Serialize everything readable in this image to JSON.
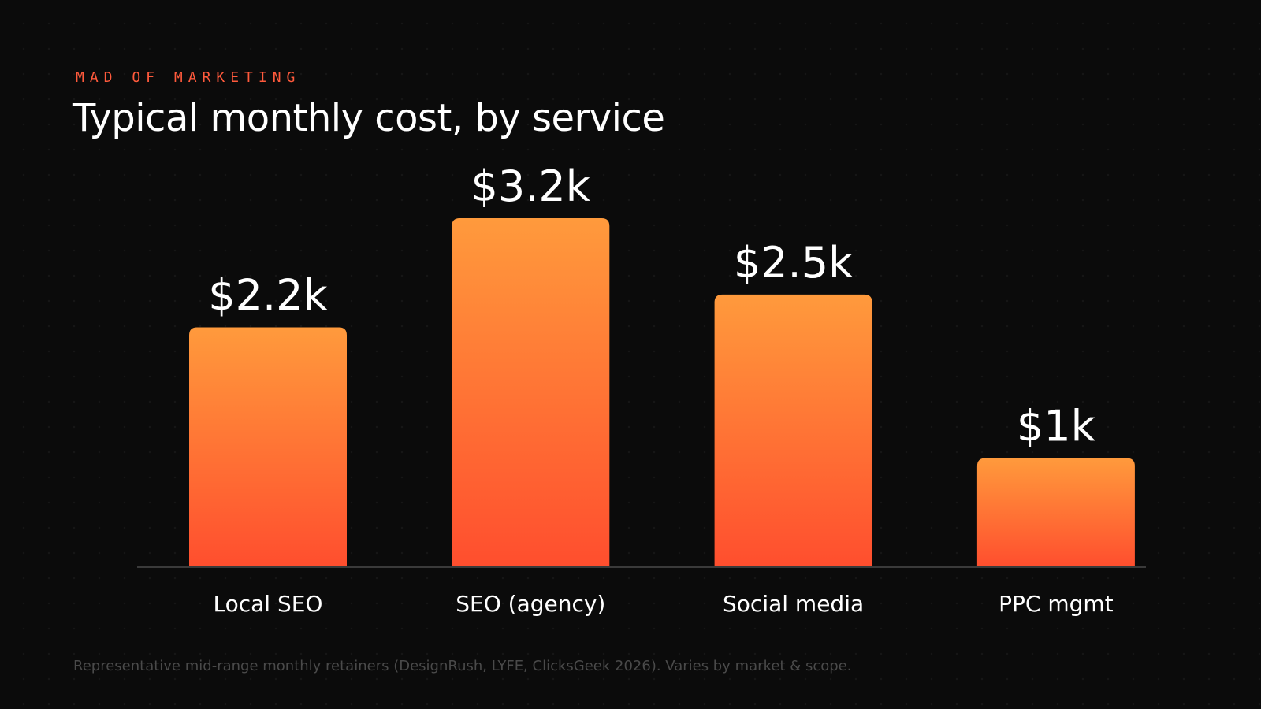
{
  "header": {
    "brand": "MAD OF MARKETING",
    "title": "Typical monthly cost, by service"
  },
  "chart_data": {
    "type": "bar",
    "title": "Typical monthly cost, by service",
    "xlabel": "",
    "ylabel": "",
    "categories": [
      "Local SEO",
      "SEO (agency)",
      "Social media",
      "PPC mgmt"
    ],
    "values": [
      2200,
      3200,
      2500,
      1000
    ],
    "value_labels": [
      "$2.2k",
      "$3.2k",
      "$2.5k",
      "$1k"
    ],
    "ylim": [
      0,
      3200
    ],
    "grid": false,
    "legend": "none",
    "bar_gradient": {
      "top": "#ff9a3c",
      "bottom": "#ff4e2e"
    },
    "axis_color": "#3a3a3a"
  },
  "footnote": "Representative mid-range monthly retainers (DesignRush, LYFE, ClicksGeek 2026). Varies by market & scope."
}
